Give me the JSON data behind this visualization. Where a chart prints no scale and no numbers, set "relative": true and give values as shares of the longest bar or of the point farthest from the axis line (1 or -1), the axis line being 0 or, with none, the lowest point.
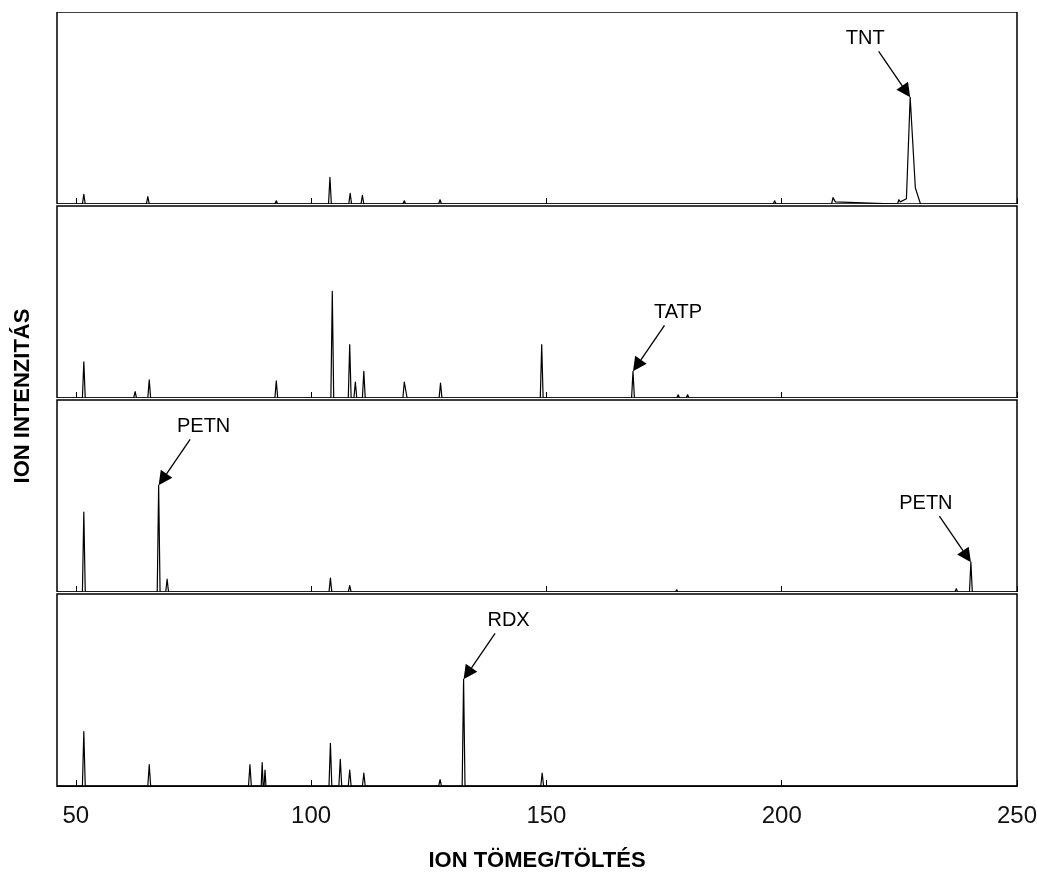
{
  "chart_data": [
    {
      "type": "line",
      "relative": true,
      "xlim": [
        46,
        250
      ],
      "xticks": [
        50,
        100,
        150,
        200,
        250
      ],
      "tick_labels": false,
      "marker": "none",
      "series": [
        {
          "color": "#000000",
          "x": [
            46,
            51.4,
            51.7,
            52,
            65,
            65.3,
            65.6,
            92.3,
            92.6,
            92.9,
            103.7,
            104,
            104.3,
            108,
            108.3,
            108.6,
            110.6,
            110.9,
            111.2,
            119.5,
            119.8,
            120.1,
            127.1,
            127.4,
            127.7,
            198.2,
            198.5,
            198.8,
            210.6,
            210.9,
            211.4,
            224.6,
            224.9,
            225.2,
            226.5,
            227.3,
            228.4,
            229.5,
            250
          ],
          "values": [
            0,
            0,
            0.09,
            0,
            0,
            0.07,
            0,
            0,
            0.03,
            0,
            0,
            0.25,
            0,
            0,
            0.1,
            0,
            0,
            0.08,
            0,
            0,
            0.03,
            0,
            0,
            0.04,
            0,
            0,
            0.03,
            0,
            0,
            0.06,
            0.02,
            0,
            0.04,
            0.02,
            0.05,
            1,
            0.15,
            0,
            0
          ]
        }
      ],
      "annotations": [
        {
          "text": "TNT",
          "x": 227.3,
          "y": 1
        }
      ]
    },
    {
      "type": "line",
      "relative": true,
      "xlim": [
        46,
        250
      ],
      "xticks": [
        50,
        100,
        150,
        200,
        250
      ],
      "tick_labels": false,
      "marker": "none",
      "series": [
        {
          "color": "#000000",
          "x": [
            46,
            51.4,
            51.7,
            52,
            62.3,
            62.6,
            62.9,
            65.3,
            65.6,
            65.9,
            92.3,
            92.6,
            92.9,
            104.2,
            104.5,
            104.8,
            107.9,
            108.2,
            108.5,
            109.1,
            109.4,
            109.7,
            110.9,
            111.2,
            111.5,
            119.5,
            119.8,
            120.4,
            127.2,
            127.5,
            127.8,
            148.7,
            149,
            149.3,
            168.1,
            168.4,
            168.7,
            177.7,
            178,
            178.3,
            179.7,
            180,
            180.3,
            250
          ],
          "values": [
            0,
            0,
            0.34,
            0,
            0,
            0.06,
            0,
            0,
            0.17,
            0,
            0,
            0.16,
            0,
            0,
            1,
            0,
            0,
            0.5,
            0,
            0,
            0.15,
            0,
            0,
            0.25,
            0,
            0,
            0.15,
            0,
            0,
            0.14,
            0,
            0,
            0.5,
            0,
            0,
            0.25,
            0,
            0,
            0.03,
            0,
            0,
            0.03,
            0,
            0
          ]
        }
      ],
      "annotations": [
        {
          "text": "TATP",
          "x": 168.4,
          "y": 0.25
        }
      ]
    },
    {
      "type": "line",
      "relative": true,
      "xlim": [
        46,
        250
      ],
      "xticks": [
        50,
        100,
        150,
        200,
        250
      ],
      "tick_labels": false,
      "marker": "none",
      "series": [
        {
          "color": "#000000",
          "x": [
            46,
            51.4,
            51.7,
            52,
            67.3,
            67.6,
            67.9,
            69.1,
            69.4,
            69.7,
            103.8,
            104.1,
            104.4,
            107.9,
            108.2,
            108.5,
            177.4,
            177.7,
            178,
            236.8,
            237.1,
            237.4,
            239.9,
            240.2,
            240.5,
            250
          ],
          "values": [
            0,
            0,
            0.75,
            0,
            0,
            1,
            0,
            0,
            0.12,
            0,
            0,
            0.13,
            0,
            0,
            0.06,
            0,
            0,
            0.02,
            0,
            0,
            0.03,
            0,
            0,
            0.28,
            0,
            0
          ]
        }
      ],
      "annotations": [
        {
          "text": "PETN",
          "x": 67.6,
          "y": 1
        },
        {
          "text": "PETN",
          "x": 240.2,
          "y": 0.28
        }
      ]
    },
    {
      "type": "line",
      "relative": true,
      "xlim": [
        46,
        250
      ],
      "xticks": [
        50,
        100,
        150,
        200,
        250
      ],
      "tick_labels": "x",
      "marker": "none",
      "xlabel": "ION TÖMEG/TÖLTÉS",
      "ylabel": "ION INTENZITÁS",
      "series": [
        {
          "color": "#000000",
          "x": [
            46,
            51.4,
            51.7,
            52,
            65.3,
            65.6,
            65.9,
            86.7,
            87,
            87.3,
            89.4,
            89.6,
            89.8,
            90,
            90.2,
            90.4,
            103.8,
            104.1,
            104.4,
            105.9,
            106.2,
            106.5,
            107.9,
            108.2,
            108.5,
            110.9,
            111.2,
            111.5,
            127.1,
            127.4,
            127.7,
            132.1,
            132.4,
            132.7,
            148.8,
            149.1,
            149.4,
            250
          ],
          "values": [
            0,
            0,
            0.51,
            0,
            0,
            0.2,
            0,
            0,
            0.2,
            0,
            0,
            0.22,
            0,
            0,
            0.15,
            0,
            0,
            0.4,
            0,
            0,
            0.25,
            0,
            0,
            0.15,
            0,
            0,
            0.12,
            0,
            0,
            0.06,
            0,
            0,
            1,
            0,
            0,
            0.12,
            0,
            0
          ]
        }
      ],
      "annotations": [
        {
          "text": "RDX",
          "x": 132.4,
          "y": 1
        }
      ]
    }
  ]
}
